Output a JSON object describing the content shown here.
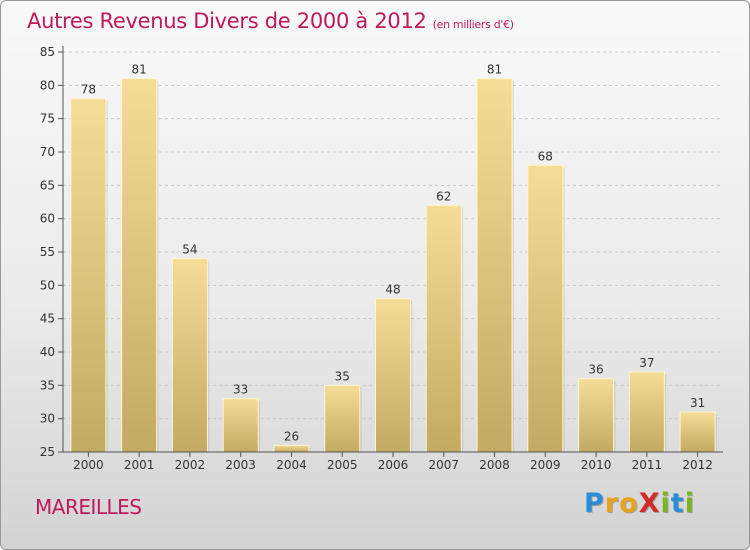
{
  "title": "Autres Revenus Divers de 2000 à 2012",
  "subtitle": "(en milliers d'€)",
  "location": "MAREILLES",
  "brand": {
    "text": "ProXiti",
    "letters": [
      "P",
      "r",
      "o",
      "X",
      "i",
      "t",
      "i"
    ],
    "colors": [
      "#2a8ed6",
      "#e8a21c",
      "#e8a21c",
      "#d32b2b",
      "#7ab51d",
      "#2a8ed6",
      "#7ab51d"
    ]
  },
  "colors": {
    "title": "#c0185a",
    "bar_light": "#f5dd98",
    "bar_dark": "#c3aa62",
    "axis": "#555555",
    "grid": "#c9c9c9"
  },
  "chart_data": {
    "type": "bar",
    "title": "Autres Revenus Divers de 2000 à 2012",
    "subtitle": "(en milliers d'€)",
    "xlabel": "",
    "ylabel": "",
    "categories": [
      "2000",
      "2001",
      "2002",
      "2003",
      "2004",
      "2005",
      "2006",
      "2007",
      "2008",
      "2009",
      "2010",
      "2011",
      "2012"
    ],
    "values": [
      78,
      81,
      54,
      33,
      26,
      35,
      48,
      62,
      81,
      68,
      36,
      37,
      31
    ],
    "ylim": [
      25,
      85
    ],
    "yticks": [
      25,
      30,
      35,
      40,
      45,
      50,
      55,
      60,
      65,
      70,
      75,
      80,
      85
    ],
    "grid": "horizontal dashed",
    "data_labels": true
  }
}
